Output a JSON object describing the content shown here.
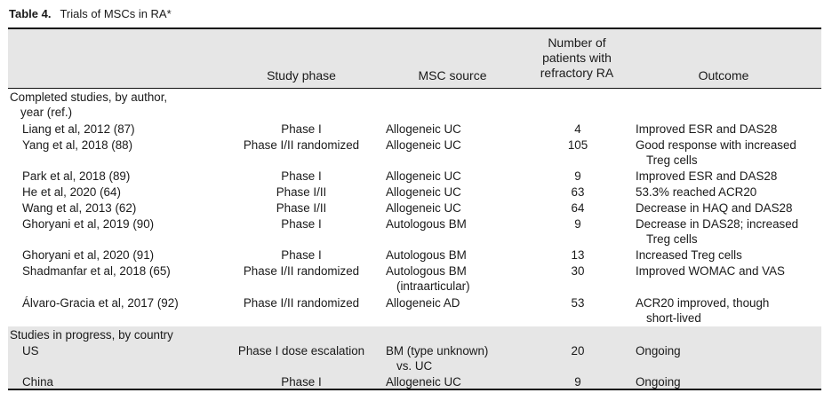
{
  "table": {
    "label": "Table 4.",
    "title": "Trials of MSCs in RA*",
    "headers": {
      "study_phase": "Study phase",
      "msc_source": "MSC source",
      "patients": [
        "Number of",
        "patients with",
        "refractory RA"
      ],
      "outcome": "Outcome"
    },
    "sections": [
      {
        "label": [
          "Completed studies, by author,",
          "year (ref.)"
        ],
        "rows": [
          {
            "study": "Liang et al, 2012 (87)",
            "phase": "Phase I",
            "source": [
              "Allogeneic UC"
            ],
            "n": "4",
            "outcome": [
              "Improved ESR and DAS28"
            ]
          },
          {
            "study": "Yang et al, 2018 (88)",
            "phase": "Phase I/II randomized",
            "source": [
              "Allogeneic UC"
            ],
            "n": "105",
            "outcome": [
              "Good response with increased",
              "Treg cells"
            ]
          },
          {
            "study": "Park et al, 2018 (89)",
            "phase": "Phase I",
            "source": [
              "Allogeneic UC"
            ],
            "n": "9",
            "outcome": [
              "Improved ESR and DAS28"
            ]
          },
          {
            "study": "He et al, 2020 (64)",
            "phase": "Phase I/II",
            "source": [
              "Allogeneic UC"
            ],
            "n": "63",
            "outcome": [
              "53.3% reached ACR20"
            ]
          },
          {
            "study": "Wang et al, 2013 (62)",
            "phase": "Phase I/II",
            "source": [
              "Allogeneic UC"
            ],
            "n": "64",
            "outcome": [
              "Decrease in HAQ and DAS28"
            ]
          },
          {
            "study": "Ghoryani et al, 2019 (90)",
            "phase": "Phase I",
            "source": [
              "Autologous BM"
            ],
            "n": "9",
            "outcome": [
              "Decrease in DAS28; increased",
              "Treg cells"
            ]
          },
          {
            "study": "Ghoryani et al, 2020 (91)",
            "phase": "Phase I",
            "source": [
              "Autologous BM"
            ],
            "n": "13",
            "outcome": [
              "Increased Treg cells"
            ]
          },
          {
            "study": "Shadmanfar et al, 2018 (65)",
            "phase": "Phase I/II randomized",
            "source": [
              "Autologous BM",
              "(intraarticular)"
            ],
            "n": "30",
            "outcome": [
              "Improved WOMAC and VAS"
            ]
          },
          {
            "study": "Álvaro-Gracia et al, 2017 (92)",
            "phase": "Phase I/II randomized",
            "source": [
              "Allogeneic AD"
            ],
            "n": "53",
            "outcome": [
              "ACR20 improved, though",
              "short-lived"
            ]
          }
        ]
      },
      {
        "label": [
          "Studies in progress, by country"
        ],
        "rows": [
          {
            "study": "US",
            "phase": "Phase I dose escalation",
            "source": [
              "BM (type unknown)",
              "vs. UC"
            ],
            "n": "20",
            "outcome": [
              "Ongoing"
            ]
          },
          {
            "study": "China",
            "phase": "Phase I",
            "source": [
              "Allogeneic UC"
            ],
            "n": "9",
            "outcome": [
              "Ongoing"
            ]
          }
        ]
      }
    ]
  }
}
